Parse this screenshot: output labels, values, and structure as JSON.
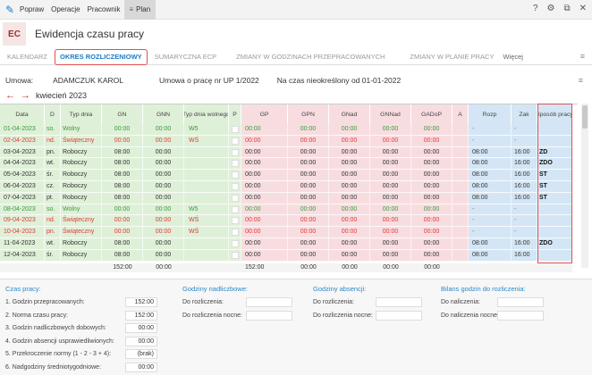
{
  "menubar": {
    "items": [
      "Popraw",
      "Operacje",
      "Pracownik"
    ],
    "active_item": "Plan",
    "controls": [
      "?",
      "⚙",
      "⧉",
      "✕"
    ]
  },
  "header": {
    "badge": "EC",
    "title": "Ewidencja czasu pracy"
  },
  "tabs": [
    "KALENDARZ",
    "OKRES ROZLICZENIOWY",
    "SUMARYCZNA ECP",
    "ZMIANY W GODZINACH PRZEPRACOWANYCH",
    "ZMIANY W PLANIE PRACY",
    "Więcej"
  ],
  "active_tab": "OKRES ROZLICZENIOWY",
  "info": {
    "umowa_label": "Umowa:",
    "employee": "ADAMCZUK KAROL",
    "contract": "Umowa o pracę nr UP 1/2022",
    "duration": "Na czas nieokreślony od 01-01-2022"
  },
  "nav": {
    "month": "kwiecień 2023"
  },
  "columns": [
    "Data",
    "D",
    "Typ dnia",
    "GN",
    "GNN",
    "Typ dnia wolnego",
    "P",
    "GP",
    "GPN",
    "GNad",
    "GNNad",
    "GADoP",
    "A",
    "Rozp",
    "Zak",
    "Sposób pracy"
  ],
  "rows": [
    {
      "data": "01-04-2023",
      "d": "so.",
      "typ": "Wolny",
      "gn": "00:00",
      "gnn": "00:00",
      "wolny": "W5",
      "gp": "00:00",
      "gpn": "00:00",
      "gnad": "00:00",
      "gnnad": "00:00",
      "gadop": "00:00",
      "rozp": "-",
      "zak": "-",
      "sposob": "",
      "kind": "wolny"
    },
    {
      "data": "02-04-2023",
      "d": "nd.",
      "typ": "Świąteczny",
      "gn": "00:00",
      "gnn": "00:00",
      "wolny": "WŚ",
      "gp": "00:00",
      "gpn": "00:00",
      "gnad": "00:00",
      "gnnad": "00:00",
      "gadop": "00:00",
      "rozp": "-",
      "zak": "-",
      "sposob": "",
      "kind": "swieto"
    },
    {
      "data": "03-04-2023",
      "d": "pn.",
      "typ": "Roboczy",
      "gn": "08:00",
      "gnn": "00:00",
      "wolny": "",
      "gp": "00:00",
      "gpn": "00:00",
      "gnad": "00:00",
      "gnnad": "00:00",
      "gadop": "00:00",
      "rozp": "08:00",
      "zak": "16:00",
      "sposob": "ZD",
      "kind": "roboczy"
    },
    {
      "data": "04-04-2023",
      "d": "wt.",
      "typ": "Roboczy",
      "gn": "08:00",
      "gnn": "00:00",
      "wolny": "",
      "gp": "00:00",
      "gpn": "00:00",
      "gnad": "00:00",
      "gnnad": "00:00",
      "gadop": "00:00",
      "rozp": "08:00",
      "zak": "16:00",
      "sposob": "ZDO",
      "kind": "roboczy"
    },
    {
      "data": "05-04-2023",
      "d": "śr.",
      "typ": "Roboczy",
      "gn": "08:00",
      "gnn": "00:00",
      "wolny": "",
      "gp": "00:00",
      "gpn": "00:00",
      "gnad": "00:00",
      "gnnad": "00:00",
      "gadop": "00:00",
      "rozp": "08:00",
      "zak": "16:00",
      "sposob": "ST",
      "kind": "roboczy"
    },
    {
      "data": "06-04-2023",
      "d": "cz.",
      "typ": "Roboczy",
      "gn": "08:00",
      "gnn": "00:00",
      "wolny": "",
      "gp": "00:00",
      "gpn": "00:00",
      "gnad": "00:00",
      "gnnad": "00:00",
      "gadop": "00:00",
      "rozp": "08:00",
      "zak": "16:00",
      "sposob": "ST",
      "kind": "roboczy"
    },
    {
      "data": "07-04-2023",
      "d": "pt.",
      "typ": "Roboczy",
      "gn": "08:00",
      "gnn": "00:00",
      "wolny": "",
      "gp": "00:00",
      "gpn": "00:00",
      "gnad": "00:00",
      "gnnad": "00:00",
      "gadop": "00:00",
      "rozp": "08:00",
      "zak": "16:00",
      "sposob": "ST",
      "kind": "roboczy"
    },
    {
      "data": "08-04-2023",
      "d": "so.",
      "typ": "Wolny",
      "gn": "00:00",
      "gnn": "00:00",
      "wolny": "W5",
      "gp": "00:00",
      "gpn": "00:00",
      "gnad": "00:00",
      "gnnad": "00:00",
      "gadop": "00:00",
      "rozp": "-",
      "zak": "-",
      "sposob": "",
      "kind": "wolny"
    },
    {
      "data": "09-04-2023",
      "d": "nd.",
      "typ": "Świąteczny",
      "gn": "00:00",
      "gnn": "00:00",
      "wolny": "WŚ",
      "gp": "00:00",
      "gpn": "00:00",
      "gnad": "00:00",
      "gnnad": "00:00",
      "gadop": "00:00",
      "rozp": "-",
      "zak": "-",
      "sposob": "",
      "kind": "swieto"
    },
    {
      "data": "10-04-2023",
      "d": "pn.",
      "typ": "Świąteczny",
      "gn": "00:00",
      "gnn": "00:00",
      "wolny": "WŚ",
      "gp": "00:00",
      "gpn": "00:00",
      "gnad": "00:00",
      "gnnad": "00:00",
      "gadop": "00:00",
      "rozp": "-",
      "zak": "-",
      "sposob": "",
      "kind": "swieto"
    },
    {
      "data": "11-04-2023",
      "d": "wt.",
      "typ": "Roboczy",
      "gn": "08:00",
      "gnn": "00:00",
      "wolny": "",
      "gp": "00:00",
      "gpn": "00:00",
      "gnad": "00:00",
      "gnnad": "00:00",
      "gadop": "00:00",
      "rozp": "08:00",
      "zak": "16:00",
      "sposob": "ZDO",
      "kind": "roboczy"
    },
    {
      "data": "12-04-2023",
      "d": "śr.",
      "typ": "Roboczy",
      "gn": "08:00",
      "gnn": "00:00",
      "wolny": "",
      "gp": "00:00",
      "gpn": "00:00",
      "gnad": "00:00",
      "gnnad": "00:00",
      "gadop": "00:00",
      "rozp": "08:00",
      "zak": "16:00",
      "sposob": "",
      "kind": "roboczy"
    }
  ],
  "totals": {
    "gn": "152:00",
    "gnn": "00:00",
    "gp": "152:00",
    "gpn": "00:00",
    "gnad": "00:00",
    "gnnad": "00:00",
    "gadop": "00:00"
  },
  "czas_pracy": {
    "title": "Czas pracy:",
    "items": [
      {
        "label": "1. Godzin przepracowanych:",
        "value": "152:00"
      },
      {
        "label": "2. Norma czasu pracy:",
        "value": "152:00"
      },
      {
        "label": "3. Godzin nadliczbowych dobowych:",
        "value": "00:00"
      },
      {
        "label": "4. Godzin absencji usprawiedliwionych:",
        "value": "00:00"
      },
      {
        "label": "5. Przekroczenie normy (1 - 2 - 3 + 4):",
        "value": "(brak)"
      },
      {
        "label": "6. Nadgodziny średniotygodniowe:",
        "value": "00:00"
      }
    ]
  },
  "nadliczbowe": {
    "title": "Godziny nadliczbowe:",
    "items": [
      {
        "label": "Do rozliczenia:",
        "value": ""
      },
      {
        "label": "Do rozliczenia nocne:",
        "value": ""
      }
    ]
  },
  "absencji": {
    "title": "Godziny absencji:",
    "items": [
      {
        "label": "Do rozliczenia:",
        "value": ""
      },
      {
        "label": "Do rozliczenia nocne:",
        "value": ""
      }
    ]
  },
  "bilans": {
    "title": "Bilans godzin do rozliczenia:",
    "items": [
      {
        "label": "Do naliczenia:",
        "value": ""
      },
      {
        "label": "Do naliczenia nocne:",
        "value": ""
      }
    ]
  },
  "colors": {
    "green_bg": "#dff0d8",
    "pink_bg": "#f8dde0",
    "blue_bg": "#d4e6f5",
    "wolny_text": "#3c9a3c",
    "swieto_text": "#e03a3a",
    "accent": "#1e7ac7"
  }
}
